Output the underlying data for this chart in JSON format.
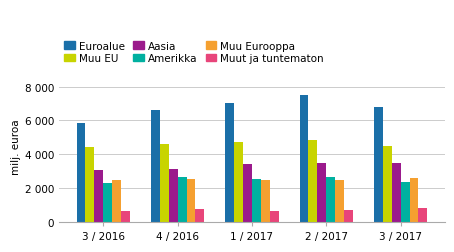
{
  "categories": [
    "3 / 2016",
    "4 / 2016",
    "1 / 2017",
    "2 / 2017",
    "3 / 2017"
  ],
  "series": {
    "Euroalue": [
      5850,
      6600,
      7050,
      7500,
      6800
    ],
    "Muu EU": [
      4450,
      4600,
      4750,
      4850,
      4500
    ],
    "Aasia": [
      3050,
      3150,
      3400,
      3450,
      3500
    ],
    "Amerikka": [
      2300,
      2650,
      2500,
      2650,
      2350
    ],
    "Muu Eurooppa": [
      2450,
      2550,
      2450,
      2450,
      2600
    ],
    "Muut ja tuntematon": [
      650,
      750,
      650,
      700,
      800
    ]
  },
  "colors": {
    "Euroalue": "#1a6fa8",
    "Muu EU": "#c8d400",
    "Aasia": "#9b1a8c",
    "Amerikka": "#00b0a0",
    "Muu Eurooppa": "#f5a030",
    "Muut ja tuntematon": "#e8457a"
  },
  "ylabel": "milj. euroa",
  "ylim": [
    0,
    9000
  ],
  "yticks": [
    0,
    2000,
    4000,
    6000,
    8000
  ],
  "legend_order": [
    "Euroalue",
    "Muu EU",
    "Aasia",
    "Amerikka",
    "Muu Eurooppa",
    "Muut ja tuntematon"
  ],
  "background_color": "#ffffff",
  "grid_color": "#cccccc"
}
